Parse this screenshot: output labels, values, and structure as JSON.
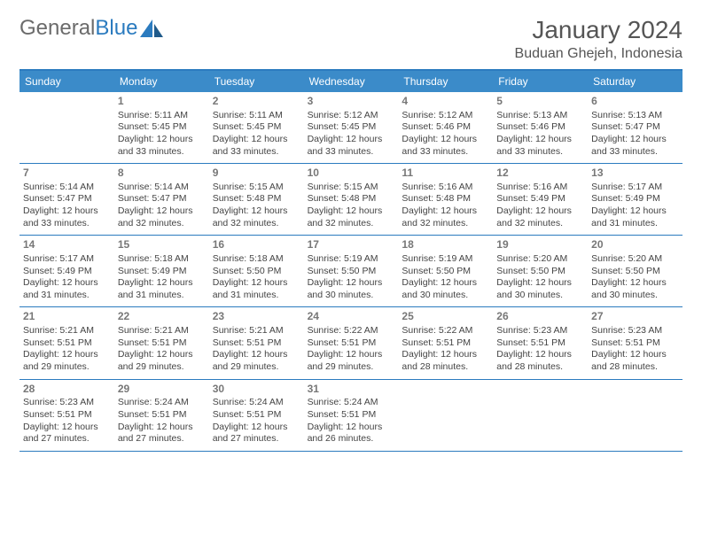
{
  "logo": {
    "text1": "General",
    "text2": "Blue"
  },
  "header": {
    "title": "January 2024",
    "location": "Buduan Ghejeh, Indonesia"
  },
  "colors": {
    "header_bg": "#3b8bc9",
    "header_text": "#ffffff",
    "border": "#2b7bbf",
    "daynum": "#777777",
    "body_text": "#444444",
    "title_text": "#555555",
    "logo_gray": "#6b6b6b",
    "logo_blue": "#2b7bbf"
  },
  "weekdays": [
    "Sunday",
    "Monday",
    "Tuesday",
    "Wednesday",
    "Thursday",
    "Friday",
    "Saturday"
  ],
  "weeks": [
    [
      {
        "day": "",
        "lines": []
      },
      {
        "day": "1",
        "lines": [
          "Sunrise: 5:11 AM",
          "Sunset: 5:45 PM",
          "Daylight: 12 hours",
          "and 33 minutes."
        ]
      },
      {
        "day": "2",
        "lines": [
          "Sunrise: 5:11 AM",
          "Sunset: 5:45 PM",
          "Daylight: 12 hours",
          "and 33 minutes."
        ]
      },
      {
        "day": "3",
        "lines": [
          "Sunrise: 5:12 AM",
          "Sunset: 5:45 PM",
          "Daylight: 12 hours",
          "and 33 minutes."
        ]
      },
      {
        "day": "4",
        "lines": [
          "Sunrise: 5:12 AM",
          "Sunset: 5:46 PM",
          "Daylight: 12 hours",
          "and 33 minutes."
        ]
      },
      {
        "day": "5",
        "lines": [
          "Sunrise: 5:13 AM",
          "Sunset: 5:46 PM",
          "Daylight: 12 hours",
          "and 33 minutes."
        ]
      },
      {
        "day": "6",
        "lines": [
          "Sunrise: 5:13 AM",
          "Sunset: 5:47 PM",
          "Daylight: 12 hours",
          "and 33 minutes."
        ]
      }
    ],
    [
      {
        "day": "7",
        "lines": [
          "Sunrise: 5:14 AM",
          "Sunset: 5:47 PM",
          "Daylight: 12 hours",
          "and 33 minutes."
        ]
      },
      {
        "day": "8",
        "lines": [
          "Sunrise: 5:14 AM",
          "Sunset: 5:47 PM",
          "Daylight: 12 hours",
          "and 32 minutes."
        ]
      },
      {
        "day": "9",
        "lines": [
          "Sunrise: 5:15 AM",
          "Sunset: 5:48 PM",
          "Daylight: 12 hours",
          "and 32 minutes."
        ]
      },
      {
        "day": "10",
        "lines": [
          "Sunrise: 5:15 AM",
          "Sunset: 5:48 PM",
          "Daylight: 12 hours",
          "and 32 minutes."
        ]
      },
      {
        "day": "11",
        "lines": [
          "Sunrise: 5:16 AM",
          "Sunset: 5:48 PM",
          "Daylight: 12 hours",
          "and 32 minutes."
        ]
      },
      {
        "day": "12",
        "lines": [
          "Sunrise: 5:16 AM",
          "Sunset: 5:49 PM",
          "Daylight: 12 hours",
          "and 32 minutes."
        ]
      },
      {
        "day": "13",
        "lines": [
          "Sunrise: 5:17 AM",
          "Sunset: 5:49 PM",
          "Daylight: 12 hours",
          "and 31 minutes."
        ]
      }
    ],
    [
      {
        "day": "14",
        "lines": [
          "Sunrise: 5:17 AM",
          "Sunset: 5:49 PM",
          "Daylight: 12 hours",
          "and 31 minutes."
        ]
      },
      {
        "day": "15",
        "lines": [
          "Sunrise: 5:18 AM",
          "Sunset: 5:49 PM",
          "Daylight: 12 hours",
          "and 31 minutes."
        ]
      },
      {
        "day": "16",
        "lines": [
          "Sunrise: 5:18 AM",
          "Sunset: 5:50 PM",
          "Daylight: 12 hours",
          "and 31 minutes."
        ]
      },
      {
        "day": "17",
        "lines": [
          "Sunrise: 5:19 AM",
          "Sunset: 5:50 PM",
          "Daylight: 12 hours",
          "and 30 minutes."
        ]
      },
      {
        "day": "18",
        "lines": [
          "Sunrise: 5:19 AM",
          "Sunset: 5:50 PM",
          "Daylight: 12 hours",
          "and 30 minutes."
        ]
      },
      {
        "day": "19",
        "lines": [
          "Sunrise: 5:20 AM",
          "Sunset: 5:50 PM",
          "Daylight: 12 hours",
          "and 30 minutes."
        ]
      },
      {
        "day": "20",
        "lines": [
          "Sunrise: 5:20 AM",
          "Sunset: 5:50 PM",
          "Daylight: 12 hours",
          "and 30 minutes."
        ]
      }
    ],
    [
      {
        "day": "21",
        "lines": [
          "Sunrise: 5:21 AM",
          "Sunset: 5:51 PM",
          "Daylight: 12 hours",
          "and 29 minutes."
        ]
      },
      {
        "day": "22",
        "lines": [
          "Sunrise: 5:21 AM",
          "Sunset: 5:51 PM",
          "Daylight: 12 hours",
          "and 29 minutes."
        ]
      },
      {
        "day": "23",
        "lines": [
          "Sunrise: 5:21 AM",
          "Sunset: 5:51 PM",
          "Daylight: 12 hours",
          "and 29 minutes."
        ]
      },
      {
        "day": "24",
        "lines": [
          "Sunrise: 5:22 AM",
          "Sunset: 5:51 PM",
          "Daylight: 12 hours",
          "and 29 minutes."
        ]
      },
      {
        "day": "25",
        "lines": [
          "Sunrise: 5:22 AM",
          "Sunset: 5:51 PM",
          "Daylight: 12 hours",
          "and 28 minutes."
        ]
      },
      {
        "day": "26",
        "lines": [
          "Sunrise: 5:23 AM",
          "Sunset: 5:51 PM",
          "Daylight: 12 hours",
          "and 28 minutes."
        ]
      },
      {
        "day": "27",
        "lines": [
          "Sunrise: 5:23 AM",
          "Sunset: 5:51 PM",
          "Daylight: 12 hours",
          "and 28 minutes."
        ]
      }
    ],
    [
      {
        "day": "28",
        "lines": [
          "Sunrise: 5:23 AM",
          "Sunset: 5:51 PM",
          "Daylight: 12 hours",
          "and 27 minutes."
        ]
      },
      {
        "day": "29",
        "lines": [
          "Sunrise: 5:24 AM",
          "Sunset: 5:51 PM",
          "Daylight: 12 hours",
          "and 27 minutes."
        ]
      },
      {
        "day": "30",
        "lines": [
          "Sunrise: 5:24 AM",
          "Sunset: 5:51 PM",
          "Daylight: 12 hours",
          "and 27 minutes."
        ]
      },
      {
        "day": "31",
        "lines": [
          "Sunrise: 5:24 AM",
          "Sunset: 5:51 PM",
          "Daylight: 12 hours",
          "and 26 minutes."
        ]
      },
      {
        "day": "",
        "lines": []
      },
      {
        "day": "",
        "lines": []
      },
      {
        "day": "",
        "lines": []
      }
    ]
  ]
}
